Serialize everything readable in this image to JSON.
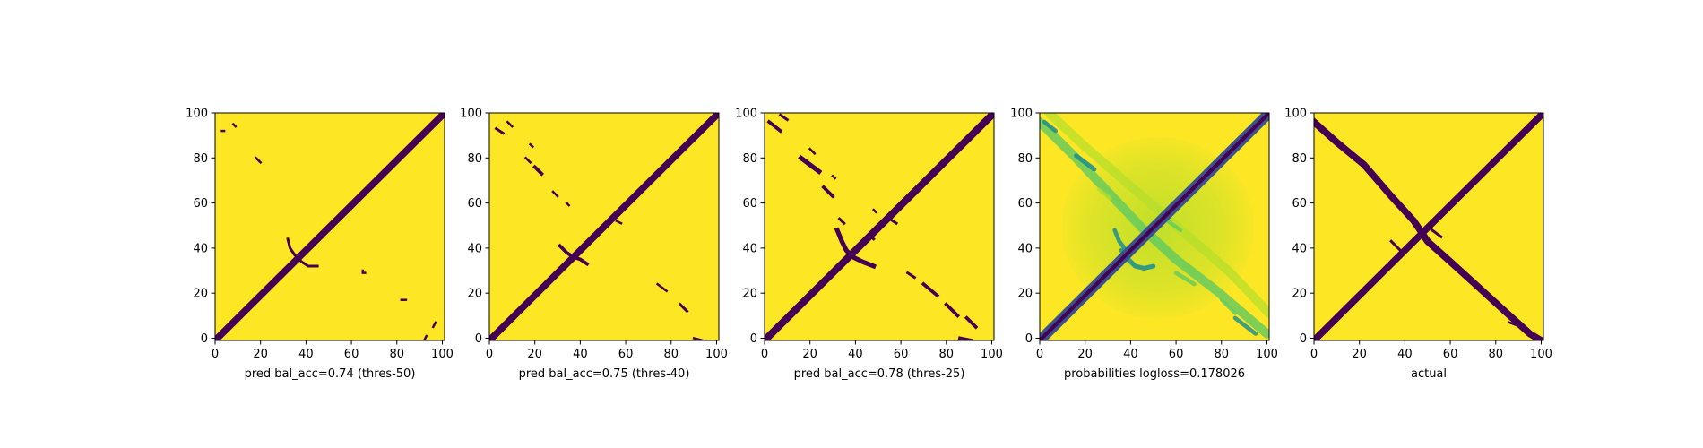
{
  "chart_data": [
    {
      "type": "heatmap",
      "title": "",
      "xlabel": "pred bal_acc=0.74 (thres-50)",
      "ylabel": "",
      "xlim": [
        0,
        101
      ],
      "ylim": [
        101,
        0
      ],
      "xticks": [
        "0",
        "20",
        "40",
        "60",
        "80",
        "100"
      ],
      "yticks": [
        "0",
        "20",
        "40",
        "60",
        "80",
        "100"
      ],
      "colormap": "viridis",
      "colors": {
        "background": "#fde725",
        "mark": "#440154"
      },
      "diagonal": {
        "from": [
          0,
          0
        ],
        "to": [
          101,
          101
        ],
        "thickness": 3
      },
      "features": [
        {
          "kind": "arc",
          "points": [
            [
              32,
              45
            ],
            [
              33,
              41
            ],
            [
              35,
              38
            ],
            [
              38,
              35
            ],
            [
              41,
              33
            ],
            [
              45,
              33
            ]
          ],
          "thickness": 1.2
        },
        {
          "kind": "segment",
          "points": [
            [
              92,
              0
            ],
            [
              93,
              2
            ]
          ],
          "thickness": 1
        },
        {
          "kind": "segment",
          "points": [
            [
              96,
              6
            ],
            [
              97,
              8
            ]
          ],
          "thickness": 1
        },
        {
          "kind": "segment",
          "points": [
            [
              82,
              18
            ],
            [
              84,
              18
            ]
          ],
          "thickness": 1
        },
        {
          "kind": "segment",
          "points": [
            [
              66,
              30
            ],
            [
              66,
              30
            ]
          ],
          "thickness": 1
        },
        {
          "kind": "segment",
          "points": [
            [
              18,
              81
            ],
            [
              20,
              79
            ]
          ],
          "thickness": 1
        },
        {
          "kind": "segment",
          "points": [
            [
              3,
              93
            ],
            [
              4,
              93
            ]
          ],
          "thickness": 1
        },
        {
          "kind": "segment",
          "points": [
            [
              8,
              96
            ],
            [
              9,
              95
            ]
          ],
          "thickness": 1
        },
        {
          "kind": "segment",
          "points": [
            [
              65,
              30
            ],
            [
              65,
              31
            ]
          ],
          "thickness": 1
        }
      ]
    },
    {
      "type": "heatmap",
      "title": "",
      "xlabel": "pred bal_acc=0.75 (thres-40)",
      "ylabel": "",
      "xlim": [
        0,
        101
      ],
      "ylim": [
        101,
        0
      ],
      "xticks": [
        "0",
        "20",
        "40",
        "60",
        "80",
        "100"
      ],
      "yticks": [
        "0",
        "20",
        "40",
        "60",
        "80",
        "100"
      ],
      "colormap": "viridis",
      "colors": {
        "background": "#fde725",
        "mark": "#440154"
      },
      "diagonal": {
        "from": [
          0,
          0
        ],
        "to": [
          101,
          101
        ],
        "thickness": 3
      },
      "features": [
        {
          "kind": "arc",
          "points": [
            [
              31,
              42
            ],
            [
              34,
              39
            ],
            [
              37,
              37
            ],
            [
              40,
              36
            ],
            [
              43,
              34
            ]
          ],
          "thickness": 1.5
        },
        {
          "kind": "segment",
          "points": [
            [
              90,
              1
            ],
            [
              94,
              0
            ]
          ],
          "thickness": 1
        },
        {
          "kind": "segment",
          "points": [
            [
              84,
              16
            ],
            [
              87,
              13
            ]
          ],
          "thickness": 1.2
        },
        {
          "kind": "segment",
          "points": [
            [
              74,
              25
            ],
            [
              78,
              22
            ]
          ],
          "thickness": 1
        },
        {
          "kind": "segment",
          "points": [
            [
              38,
              39
            ],
            [
              41,
              40
            ]
          ],
          "thickness": 1
        },
        {
          "kind": "segment",
          "points": [
            [
              34,
              61
            ],
            [
              35,
              60
            ]
          ],
          "thickness": 1
        },
        {
          "kind": "segment",
          "points": [
            [
              20,
              77
            ],
            [
              23,
              74
            ]
          ],
          "thickness": 1.5
        },
        {
          "kind": "segment",
          "points": [
            [
              16,
              81
            ],
            [
              18,
              79
            ]
          ],
          "thickness": 1
        },
        {
          "kind": "segment",
          "points": [
            [
              28,
              66
            ],
            [
              30,
              64
            ]
          ],
          "thickness": 1
        },
        {
          "kind": "segment",
          "points": [
            [
              3,
              94
            ],
            [
              6,
              92
            ]
          ],
          "thickness": 1.2
        },
        {
          "kind": "segment",
          "points": [
            [
              8,
              97
            ],
            [
              10,
              95
            ]
          ],
          "thickness": 1
        },
        {
          "kind": "segment",
          "points": [
            [
              56,
              53
            ],
            [
              58,
              52
            ]
          ],
          "thickness": 1
        },
        {
          "kind": "segment",
          "points": [
            [
              18,
              87
            ],
            [
              19,
              86
            ]
          ],
          "thickness": 1
        }
      ]
    },
    {
      "type": "heatmap",
      "title": "",
      "xlabel": "pred bal_acc=0.78 (thres-25)",
      "ylabel": "",
      "xlim": [
        0,
        101
      ],
      "ylim": [
        101,
        0
      ],
      "xticks": [
        "0",
        "20",
        "40",
        "60",
        "80",
        "100"
      ],
      "yticks": [
        "0",
        "20",
        "40",
        "60",
        "80",
        "100"
      ],
      "colormap": "viridis",
      "colors": {
        "background": "#fde725",
        "mark": "#440154"
      },
      "diagonal": {
        "from": [
          0,
          0
        ],
        "to": [
          101,
          101
        ],
        "thickness": 3.2
      },
      "features": [
        {
          "kind": "arc",
          "points": [
            [
              32,
              49
            ],
            [
              34,
              44
            ],
            [
              36,
              40
            ],
            [
              39,
              37
            ],
            [
              43,
              35
            ],
            [
              48,
              33
            ]
          ],
          "thickness": 2
        },
        {
          "kind": "segment",
          "points": [
            [
              86,
              1
            ],
            [
              91,
              0
            ]
          ],
          "thickness": 1.5
        },
        {
          "kind": "segment",
          "points": [
            [
              89,
              10
            ],
            [
              93,
              6
            ]
          ],
          "thickness": 1.5
        },
        {
          "kind": "segment",
          "points": [
            [
              80,
              16
            ],
            [
              85,
              11
            ]
          ],
          "thickness": 1.5
        },
        {
          "kind": "segment",
          "points": [
            [
              70,
              25
            ],
            [
              76,
              20
            ]
          ],
          "thickness": 1.5
        },
        {
          "kind": "segment",
          "points": [
            [
              63,
              30
            ],
            [
              66,
              28
            ]
          ],
          "thickness": 1.2
        },
        {
          "kind": "segment",
          "points": [
            [
              33,
              54
            ],
            [
              35,
              52
            ]
          ],
          "thickness": 1.2
        },
        {
          "kind": "segment",
          "points": [
            [
              26,
              68
            ],
            [
              30,
              64
            ]
          ],
          "thickness": 1.5
        },
        {
          "kind": "segment",
          "points": [
            [
              16,
              81
            ],
            [
              24,
              75
            ]
          ],
          "thickness": 2
        },
        {
          "kind": "segment",
          "points": [
            [
              30,
              73
            ],
            [
              31,
              72
            ]
          ],
          "thickness": 1
        },
        {
          "kind": "segment",
          "points": [
            [
              2,
              97
            ],
            [
              7,
              93
            ]
          ],
          "thickness": 1.5
        },
        {
          "kind": "segment",
          "points": [
            [
              7,
              100
            ],
            [
              10,
              98
            ]
          ],
          "thickness": 1.2
        },
        {
          "kind": "segment",
          "points": [
            [
              46,
              47
            ],
            [
              48,
              45
            ]
          ],
          "thickness": 1.2
        },
        {
          "kind": "segment",
          "points": [
            [
              55,
              54
            ],
            [
              58,
              52
            ]
          ],
          "thickness": 1.2
        },
        {
          "kind": "segment",
          "points": [
            [
              20,
              85
            ],
            [
              22,
              83
            ]
          ],
          "thickness": 1
        },
        {
          "kind": "segment",
          "points": [
            [
              48,
              58
            ],
            [
              49,
              57
            ]
          ],
          "thickness": 1
        }
      ]
    },
    {
      "type": "heatmap",
      "title": "",
      "xlabel": "probabilities logloss=0.178026",
      "ylabel": "",
      "xlim": [
        0,
        101
      ],
      "ylim": [
        101,
        0
      ],
      "xticks": [
        "0",
        "20",
        "40",
        "60",
        "80",
        "100"
      ],
      "yticks": [
        "0",
        "20",
        "40",
        "60",
        "80",
        "100"
      ],
      "colormap": "viridis",
      "colors": {
        "background": "#fde725",
        "diagonal": "#3b528b",
        "diagonal_core": "#440154",
        "haze": "#b5de2b",
        "mid": "#5ec962",
        "strong": "#21918c"
      },
      "diagonal": {
        "from": [
          0,
          0
        ],
        "to": [
          101,
          101
        ],
        "thickness": 3
      },
      "haze_center": [
        52,
        50
      ],
      "features": [
        {
          "kind": "anti-band",
          "points": [
            [
              0,
              97
            ],
            [
              15,
              82
            ],
            [
              30,
              66
            ],
            [
              45,
              50
            ],
            [
              60,
              36
            ],
            [
              78,
              22
            ],
            [
              100,
              3
            ]
          ],
          "intensity": 0.6,
          "thickness": 4
        },
        {
          "kind": "anti-band",
          "points": [
            [
              4,
              101
            ],
            [
              20,
              86
            ],
            [
              36,
              72
            ],
            [
              52,
              58
            ],
            [
              68,
              44
            ],
            [
              84,
              30
            ],
            [
              101,
              12
            ]
          ],
          "intensity": 0.45,
          "thickness": 4
        },
        {
          "kind": "arc",
          "points": [
            [
              36,
              40
            ],
            [
              39,
              36
            ],
            [
              42,
              33
            ],
            [
              46,
              32
            ],
            [
              50,
              33
            ]
          ],
          "intensity": 0.85,
          "thickness": 2
        },
        {
          "kind": "arc",
          "points": [
            [
              33,
              49
            ],
            [
              35,
              44
            ],
            [
              38,
              40
            ]
          ],
          "intensity": 0.8,
          "thickness": 1.8
        },
        {
          "kind": "segment",
          "points": [
            [
              16,
              82
            ],
            [
              24,
              76
            ]
          ],
          "intensity": 0.85,
          "thickness": 2
        },
        {
          "kind": "segment",
          "points": [
            [
              2,
              97
            ],
            [
              7,
              93
            ]
          ],
          "intensity": 0.85,
          "thickness": 1.8
        },
        {
          "kind": "segment",
          "points": [
            [
              86,
              10
            ],
            [
              95,
              3
            ]
          ],
          "intensity": 0.75,
          "thickness": 1.8
        },
        {
          "kind": "segment",
          "points": [
            [
              80,
              18
            ],
            [
              86,
              12
            ]
          ],
          "intensity": 0.6,
          "thickness": 1.5
        },
        {
          "kind": "segment",
          "points": [
            [
              60,
              30
            ],
            [
              68,
              25
            ]
          ],
          "intensity": 0.55,
          "thickness": 1.8
        },
        {
          "kind": "segment",
          "points": [
            [
              55,
              54
            ],
            [
              62,
              49
            ]
          ],
          "intensity": 0.55,
          "thickness": 1.6
        },
        {
          "kind": "segment",
          "points": [
            [
              26,
              67
            ],
            [
              31,
              63
            ]
          ],
          "intensity": 0.5,
          "thickness": 1.6
        }
      ]
    },
    {
      "type": "heatmap",
      "title": "",
      "xlabel": "actual",
      "ylabel": "",
      "xlim": [
        0,
        101
      ],
      "ylim": [
        101,
        0
      ],
      "xticks": [
        "0",
        "20",
        "40",
        "60",
        "80",
        "100"
      ],
      "yticks": [
        "0",
        "20",
        "40",
        "60",
        "80",
        "100"
      ],
      "colormap": "viridis",
      "colors": {
        "background": "#fde725",
        "mark": "#440154"
      },
      "diagonal": {
        "from": [
          0,
          0
        ],
        "to": [
          101,
          101
        ],
        "thickness": 3
      },
      "features": [
        {
          "kind": "band",
          "points": [
            [
              0,
              97
            ],
            [
              10,
              88
            ],
            [
              22,
              78
            ],
            [
              34,
              64
            ],
            [
              44,
              53
            ],
            [
              50,
              44
            ],
            [
              60,
              35
            ],
            [
              72,
              24
            ],
            [
              84,
              13
            ],
            [
              95,
              3
            ],
            [
              100,
              0
            ]
          ],
          "thickness": 3
        },
        {
          "kind": "segment",
          "points": [
            [
              34,
              44
            ],
            [
              38,
              40
            ]
          ],
          "thickness": 1.2
        },
        {
          "kind": "segment",
          "points": [
            [
              52,
              49
            ],
            [
              56,
              46
            ]
          ],
          "thickness": 1.2
        },
        {
          "kind": "segment",
          "points": [
            [
              86,
              8
            ],
            [
              91,
              6
            ]
          ],
          "thickness": 1
        }
      ]
    }
  ]
}
